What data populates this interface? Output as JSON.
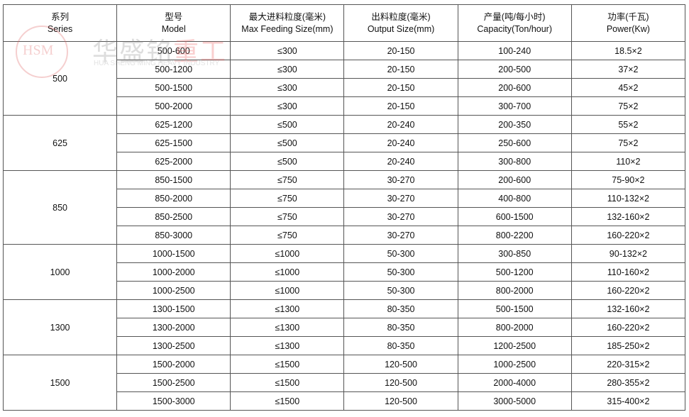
{
  "headers": [
    {
      "cn": "系列",
      "en": "Series"
    },
    {
      "cn": "型号",
      "en": "Model"
    },
    {
      "cn": "最大进料粒度(毫米)",
      "en": "Max Feeding Size(mm)"
    },
    {
      "cn": "出料粒度(毫米)",
      "en": "Output Size(mm)"
    },
    {
      "cn": "产量(吨/每小时)",
      "en": "Capacity(Ton/hour)"
    },
    {
      "cn": "功率(千瓦)",
      "en": "Power(Kw)"
    }
  ],
  "watermark": {
    "logo": "HSM",
    "cn_gray": "华盛铭",
    "cn_red": "重工",
    "en": "HUA SHENG MING HEAVY INDUSTRY"
  },
  "groups": [
    {
      "series": "500",
      "rows": [
        [
          "500-600",
          "≤300",
          "20-150",
          "100-240",
          "18.5×2"
        ],
        [
          "500-1200",
          "≤300",
          "20-150",
          "200-500",
          "37×2"
        ],
        [
          "500-1500",
          "≤300",
          "20-150",
          "200-600",
          "45×2"
        ],
        [
          "500-2000",
          "≤300",
          "20-150",
          "300-700",
          "75×2"
        ]
      ]
    },
    {
      "series": "625",
      "rows": [
        [
          "625-1200",
          "≤500",
          "20-240",
          "200-350",
          "55×2"
        ],
        [
          "625-1500",
          "≤500",
          "20-240",
          "250-600",
          "75×2"
        ],
        [
          "625-2000",
          "≤500",
          "20-240",
          "300-800",
          "110×2"
        ]
      ]
    },
    {
      "series": "850",
      "rows": [
        [
          "850-1500",
          "≤750",
          "30-270",
          "200-600",
          "75-90×2"
        ],
        [
          "850-2000",
          "≤750",
          "30-270",
          "400-800",
          "110-132×2"
        ],
        [
          "850-2500",
          "≤750",
          "30-270",
          "600-1500",
          "132-160×2"
        ],
        [
          "850-3000",
          "≤750",
          "30-270",
          "800-2200",
          "160-220×2"
        ]
      ]
    },
    {
      "series": "1000",
      "rows": [
        [
          "1000-1500",
          "≤1000",
          "50-300",
          "300-850",
          "90-132×2"
        ],
        [
          "1000-2000",
          "≤1000",
          "50-300",
          "500-1200",
          "110-160×2"
        ],
        [
          "1000-2500",
          "≤1000",
          "50-300",
          "800-2000",
          "160-220×2"
        ]
      ]
    },
    {
      "series": "1300",
      "rows": [
        [
          "1300-1500",
          "≤1300",
          "80-350",
          "500-1500",
          "132-160×2"
        ],
        [
          "1300-2000",
          "≤1300",
          "80-350",
          "800-2000",
          "160-220×2"
        ],
        [
          "1300-2500",
          "≤1300",
          "80-350",
          "1200-2500",
          "185-250×2"
        ]
      ]
    },
    {
      "series": "1500",
      "rows": [
        [
          "1500-2000",
          "≤1500",
          "120-500",
          "1000-2500",
          "220-315×2"
        ],
        [
          "1500-2500",
          "≤1500",
          "120-500",
          "2000-4000",
          "280-355×2"
        ],
        [
          "1500-3000",
          "≤1500",
          "120-500",
          "3000-5000",
          "315-400×2"
        ]
      ]
    }
  ]
}
